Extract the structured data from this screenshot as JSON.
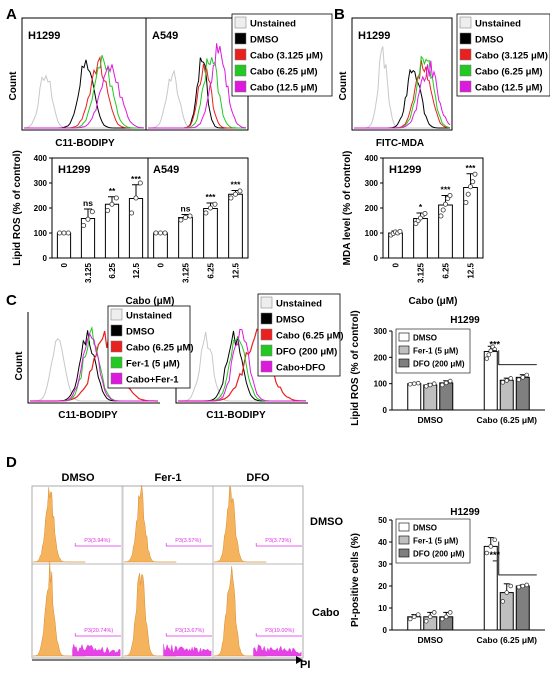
{
  "colors": {
    "unstained": "#c8c8c8",
    "dmso": "#000000",
    "cabo_low": "#e8201e",
    "cabo_mid": "#23c823",
    "cabo_high": "#dd19dd",
    "bar_light": "#ffffff",
    "bar_mid": "#bfbfbf",
    "bar_dark": "#7f7f7f",
    "pi_fill": "#f6b35e",
    "pi_pos": "#e22fe2",
    "gate": "#e22fe2"
  },
  "panels": {
    "A": "A",
    "B": "B",
    "C": "C",
    "D": "D"
  },
  "panelA": {
    "hist_ylabel": "Count",
    "hist_xlabel": "C11-BODIPY",
    "hist_titles": [
      "H1299",
      "A549"
    ],
    "legend": [
      "Unstained",
      "DMSO",
      "Cabo (3.125 μM)",
      "Cabo (6.25 μM)",
      "Cabo (12.5 μM)"
    ]
  },
  "panelB": {
    "hist_ylabel": "Count",
    "hist_xlabel": "FITC-MDA",
    "hist_title": "H1299",
    "legend": [
      "Unstained",
      "DMSO",
      "Cabo (3.125 μM)",
      "Cabo (6.25 μM)",
      "Cabo (12.5 μM)"
    ]
  },
  "panelC": {
    "hist_ylabel": "Count",
    "hist_xlabel": "C11-BODIPY",
    "legend1": [
      "Unstained",
      "DMSO",
      "Cabo (6.25 μM)",
      "Fer-1 (5 μM)",
      "Cabo+Fer-1"
    ],
    "legend2": [
      "Unstained",
      "DMSO",
      "Cabo (6.25 μM)",
      "DFO (200 μM)",
      "Cabo+DFO"
    ]
  },
  "panelD": {
    "col_titles": [
      "DMSO",
      "Fer-1",
      "DFO"
    ],
    "row_titles": [
      "DMSO",
      "Cabo"
    ],
    "xlabel": "PI",
    "gates": [
      [
        "P3(3.94%)",
        "P3(3.57%)",
        "P3(3.73%)"
      ],
      [
        "P3(20.74%)",
        "P3(13.67%)",
        "P3(19.00%)"
      ]
    ]
  },
  "chart_data": [
    {
      "type": "bar",
      "id": "A-bar",
      "ylabel": "Lipid ROS (% of control)",
      "xlabel": "Cabo (μM)",
      "ylim": [
        0,
        400
      ],
      "yticks": [
        0,
        100,
        200,
        300,
        400
      ],
      "groups": [
        {
          "title": "H1299",
          "categories": [
            "0",
            "3.125",
            "6.25",
            "12.5"
          ],
          "values": [
            100,
            158,
            215,
            238
          ],
          "errors": [
            0,
            38,
            30,
            55
          ],
          "significance": [
            "",
            "ns",
            "**",
            "***"
          ],
          "points": [
            [
              100,
              100,
              100
            ],
            [
              130,
              155,
              185
            ],
            [
              190,
              215,
              240
            ],
            [
              180,
              240,
              300
            ]
          ]
        },
        {
          "title": "A549",
          "categories": [
            "0",
            "3.125",
            "6.25",
            "12.5"
          ],
          "values": [
            100,
            162,
            198,
            255
          ],
          "errors": [
            0,
            12,
            22,
            15
          ],
          "significance": [
            "",
            "ns",
            "***",
            "***"
          ],
          "points": [
            [
              100,
              100,
              100
            ],
            [
              152,
              162,
              168
            ],
            [
              180,
              200,
              215
            ],
            [
              240,
              255,
              268
            ]
          ]
        }
      ]
    },
    {
      "type": "bar",
      "id": "B-bar",
      "title": "H1299",
      "ylabel": "MDA level (% of control)",
      "xlabel": "Cabo (μM)",
      "ylim": [
        0,
        400
      ],
      "yticks": [
        0,
        100,
        200,
        300,
        400
      ],
      "categories": [
        "0",
        "3.125",
        "6.25",
        "12.5"
      ],
      "values": [
        100,
        158,
        212,
        282
      ],
      "errors": [
        8,
        22,
        38,
        55
      ],
      "significance": [
        "",
        "*",
        "***",
        "***"
      ],
      "points": [
        [
          92,
          98,
          104,
          100,
          106
        ],
        [
          138,
          150,
          160,
          172,
          178
        ],
        [
          168,
          192,
          215,
          238,
          250
        ],
        [
          222,
          255,
          285,
          305,
          335
        ]
      ]
    },
    {
      "type": "bar",
      "id": "C-bar",
      "title": "H1299",
      "ylabel": "Lipid ROS (% of control)",
      "ylim": [
        0,
        300
      ],
      "yticks": [
        0,
        100,
        200,
        300
      ],
      "groups": [
        "DMSO",
        "Cabo (6.25 μM)"
      ],
      "series": [
        {
          "name": "DMSO",
          "values": [
            100,
            222
          ],
          "errors": [
            3,
            20
          ]
        },
        {
          "name": "Fer-1 (5 μM)",
          "values": [
            95,
            113
          ],
          "errors": [
            6,
            8
          ]
        },
        {
          "name": "DFO (200 μM)",
          "values": [
            103,
            124
          ],
          "errors": [
            8,
            10
          ]
        }
      ],
      "points": [
        [
          [
            98,
            100,
            102
          ],
          [
            195,
            210,
            225,
            240,
            230
          ]
        ],
        [
          [
            90,
            95,
            100
          ],
          [
            105,
            112,
            120
          ]
        ],
        [
          [
            95,
            103,
            110
          ],
          [
            115,
            124,
            133
          ]
        ]
      ],
      "significance": "***"
    },
    {
      "type": "bar",
      "id": "D-bar",
      "title": "H1299",
      "ylabel": "PI-positive cells (%)",
      "ylim": [
        0,
        50
      ],
      "yticks": [
        0,
        10,
        20,
        30,
        40,
        50
      ],
      "groups": [
        "DMSO",
        "Cabo (6.25 μM)"
      ],
      "series": [
        {
          "name": "DMSO",
          "values": [
            6,
            38
          ],
          "errors": [
            1,
            4
          ]
        },
        {
          "name": "Fer-1 (5 μM)",
          "values": [
            6,
            17
          ],
          "errors": [
            2,
            4
          ]
        },
        {
          "name": "DFO (200 μM)",
          "values": [
            6,
            20
          ],
          "errors": [
            2,
            0.5
          ]
        }
      ],
      "points": [
        [
          [
            5,
            6,
            7
          ],
          [
            35,
            38,
            41
          ]
        ],
        [
          [
            4,
            6,
            8
          ],
          [
            13,
            17,
            20
          ]
        ],
        [
          [
            5,
            6,
            8
          ],
          [
            19.5,
            20,
            20.5
          ]
        ]
      ],
      "significance": "***"
    }
  ]
}
